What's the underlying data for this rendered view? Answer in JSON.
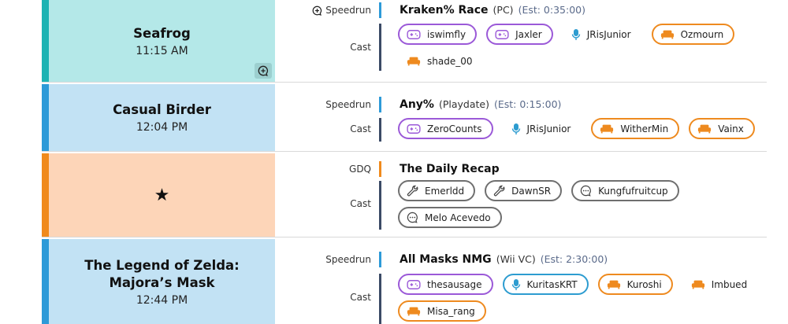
{
  "labels": {
    "cast": "Cast"
  },
  "colors": {
    "strip_teal": "#1db3b3",
    "strip_blue": "#2d9ad8",
    "strip_orange": "#f08a1c",
    "panel_teal": "#b4e8e8",
    "panel_blue": "#c2e2f4",
    "panel_peach": "#fdd5b8",
    "runner": "#9b59d8",
    "couch": "#ee8a1f",
    "commentator": "#2d9cd0",
    "host": "#6f6f6f"
  },
  "rows": [
    {
      "title": "Seafrog",
      "time": "11:15 AM",
      "type": "Speedrun",
      "type_icon": "chat-plus-icon",
      "run_title": "Kraken% Race",
      "platform": "(PC)",
      "estimate": "(Est: 0:35:00)",
      "cast": [
        {
          "name": "iswimfly",
          "role": "runner",
          "icon": "gamepad-icon"
        },
        {
          "name": "Jaxler",
          "role": "runner",
          "icon": "gamepad-icon"
        },
        {
          "name": "JRisJunior",
          "role": "plain",
          "icon": "microphone-icon"
        },
        {
          "name": "Ozmourn",
          "role": "couch",
          "icon": "couch-icon"
        },
        {
          "name": "shade_00",
          "role": "plain",
          "icon": "couch-icon"
        }
      ]
    },
    {
      "title": "Casual Birder",
      "time": "12:04 PM",
      "type": "Speedrun",
      "run_title": "Any%",
      "platform": "(Playdate)",
      "estimate": "(Est: 0:15:00)",
      "cast": [
        {
          "name": "ZeroCounts",
          "role": "runner",
          "icon": "gamepad-icon"
        },
        {
          "name": "JRisJunior",
          "role": "plain",
          "icon": "microphone-icon"
        },
        {
          "name": "WitherMin",
          "role": "couch",
          "icon": "couch-icon"
        },
        {
          "name": "Vainx",
          "role": "couch",
          "icon": "couch-icon"
        }
      ]
    },
    {
      "title": "★",
      "time": "",
      "type": "GDQ",
      "run_title": "The Daily Recap",
      "platform": "",
      "estimate": "",
      "cast": [
        {
          "name": "Emerldd",
          "role": "host",
          "icon": "wrench-icon"
        },
        {
          "name": "DawnSR",
          "role": "host",
          "icon": "wrench-icon"
        },
        {
          "name": "Kungfufruitcup",
          "role": "host",
          "icon": "speech-bubble-icon"
        },
        {
          "name": "Melo Acevedo",
          "role": "host",
          "icon": "speech-bubble-icon"
        }
      ]
    },
    {
      "title": "The Legend of Zelda: Majora’s Mask",
      "time": "12:44 PM",
      "type": "Speedrun",
      "run_title": "All Masks NMG",
      "platform": "(Wii VC)",
      "estimate": "(Est: 2:30:00)",
      "cast": [
        {
          "name": "thesausage",
          "role": "runner",
          "icon": "gamepad-icon"
        },
        {
          "name": "KuritasKRT",
          "role": "commentator",
          "icon": "microphone-icon"
        },
        {
          "name": "Kuroshi",
          "role": "couch",
          "icon": "couch-icon"
        },
        {
          "name": "Imbued",
          "role": "plain",
          "icon": "couch-icon"
        },
        {
          "name": "Misa_rang",
          "role": "couch",
          "icon": "couch-icon"
        }
      ]
    }
  ]
}
